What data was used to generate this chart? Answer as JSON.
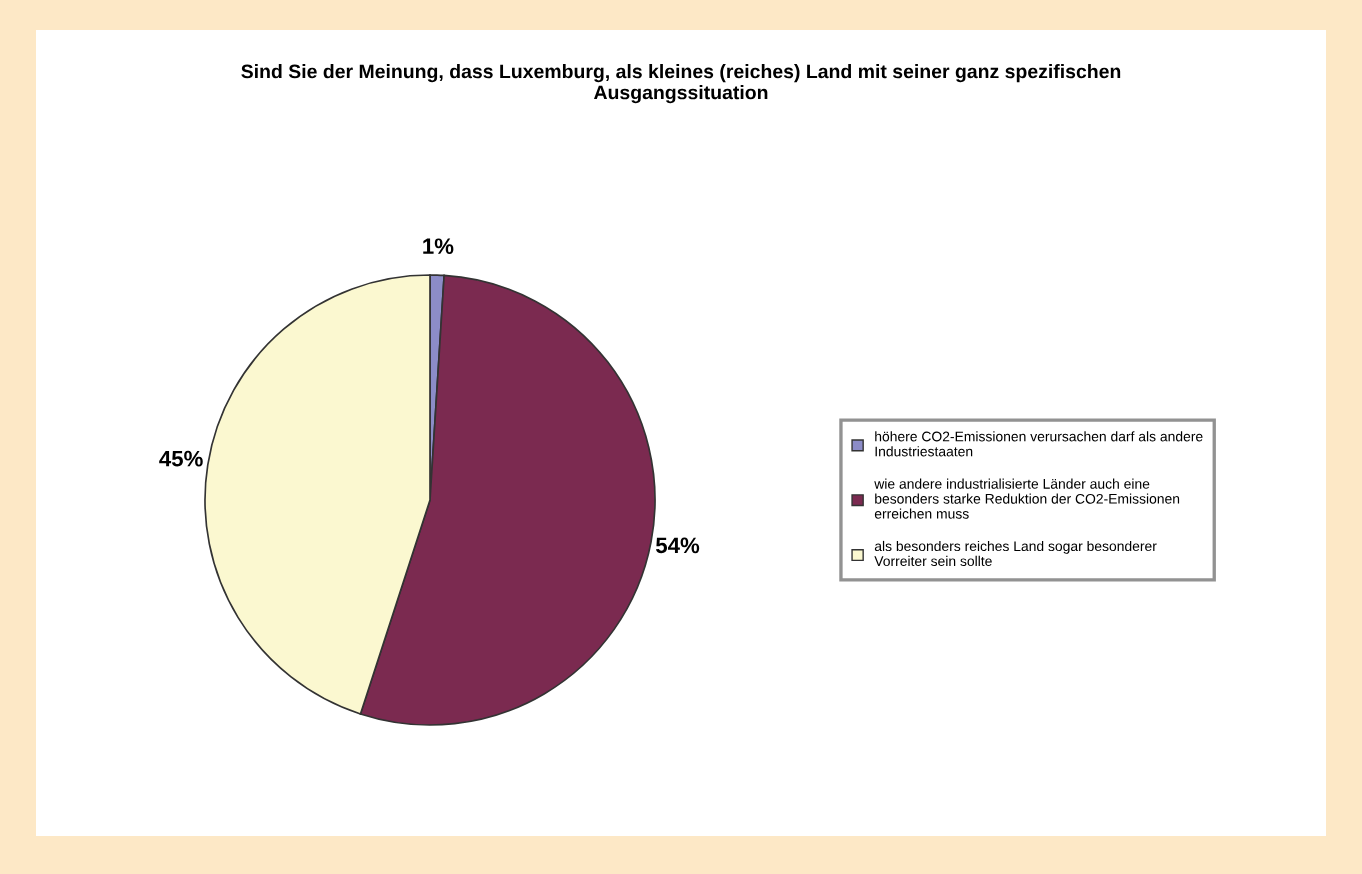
{
  "chart_data": {
    "type": "pie",
    "title": "Sind Sie der Meinung, dass Luxemburg, als kleines (reiches) Land mit seiner ganz spezifischen Ausgangssituation",
    "categories": [
      "höhere CO2-Emissionen verursachen darf als andere Industriestaaten",
      "wie andere industrialisierte Länder auch eine besonders starke Reduktion der CO2-Emissionen erreichen muss",
      "als besonders reiches Land sogar besonderer Vorreiter sein sollte"
    ],
    "values": [
      1,
      54,
      45
    ],
    "colors": [
      "#8c8cc8",
      "#7b2a50",
      "#fbf8d0"
    ],
    "value_labels": [
      "1%",
      "54%",
      "45%"
    ],
    "legend": "right"
  }
}
